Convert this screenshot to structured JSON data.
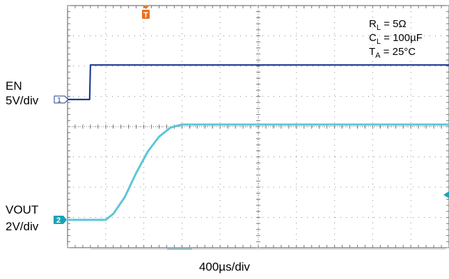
{
  "chart_data": {
    "type": "line",
    "time_scale": "400µs/div",
    "conditions": [
      {
        "symbol": "R",
        "sub": "L",
        "value": " = 5Ω"
      },
      {
        "symbol": "C",
        "sub": "L",
        "value": " = 100µF"
      },
      {
        "symbol": "T",
        "sub": "A",
        "value": " = 25°C"
      }
    ],
    "grid": true,
    "trigger_marker": "T",
    "channels": [
      {
        "id": "1",
        "name": "EN",
        "scale": "5V/div",
        "color": "#1f3e8f",
        "unit": "V",
        "x_div": [
          0,
          0.58,
          0.6,
          10
        ],
        "y": [
          0,
          0,
          5.7,
          5.7
        ]
      },
      {
        "id": "2",
        "name": "VOUT",
        "scale": "2V/div",
        "color": "#5cc6d8",
        "unit": "V",
        "x_div": [
          0,
          1.0,
          1.2,
          1.5,
          1.8,
          2.1,
          2.4,
          2.7,
          3.0,
          3.2,
          10
        ],
        "y": [
          0,
          0,
          0.4,
          1.5,
          3.1,
          4.5,
          5.5,
          6.1,
          6.3,
          6.3,
          6.3
        ]
      }
    ]
  }
}
